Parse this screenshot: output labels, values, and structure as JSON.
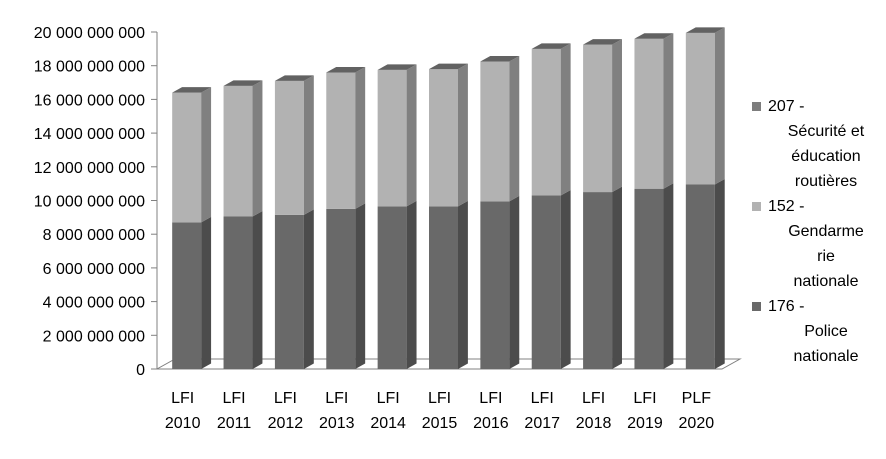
{
  "chart_data": {
    "type": "bar",
    "stacked": true,
    "style": "3d-column",
    "categories": [
      [
        "LFI",
        "2010"
      ],
      [
        "LFI",
        "2011"
      ],
      [
        "LFI",
        "2012"
      ],
      [
        "LFI",
        "2013"
      ],
      [
        "LFI",
        "2014"
      ],
      [
        "LFI",
        "2015"
      ],
      [
        "LFI",
        "2016"
      ],
      [
        "LFI",
        "2017"
      ],
      [
        "LFI",
        "2018"
      ],
      [
        "LFI",
        "2019"
      ],
      [
        "PLF",
        "2020"
      ]
    ],
    "series": [
      {
        "name": [
          "176 -",
          "Police",
          "nationale"
        ],
        "color": "#696969",
        "values": [
          8700000000,
          9050000000,
          9150000000,
          9500000000,
          9650000000,
          9650000000,
          9950000000,
          10300000000,
          10500000000,
          10700000000,
          10950000000
        ]
      },
      {
        "name": [
          "152 -",
          "Gendarme",
          "rie",
          "nationale"
        ],
        "color": "#b2b2b2",
        "values": [
          7700000000,
          7750000000,
          7950000000,
          8100000000,
          8100000000,
          8150000000,
          8300000000,
          8700000000,
          8750000000,
          8900000000,
          9000000000
        ]
      },
      {
        "name": [
          "207 -",
          "Sécurité et",
          "éducation",
          "routières"
        ],
        "color": "#7d7d7d",
        "values": [
          0,
          0,
          0,
          0,
          0,
          0,
          0,
          0,
          0,
          0,
          0
        ]
      }
    ],
    "y_ticks": [
      "0",
      "2 000 000 000",
      "4 000 000 000",
      "6 000 000 000",
      "8 000 000 000",
      "10 000 000 000",
      "12 000 000 000",
      "14 000 000 000",
      "16 000 000 000",
      "18 000 000 000",
      "20 000 000 000"
    ],
    "ylim": [
      0,
      20000000000
    ],
    "legend": "right",
    "grid": false
  }
}
